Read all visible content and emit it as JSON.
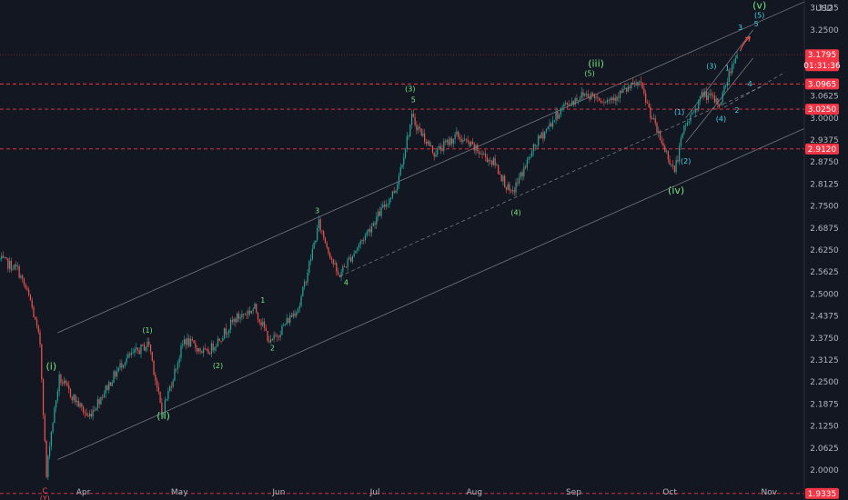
{
  "currency_label": "USD",
  "colors": {
    "background": "#131722",
    "up": "#26a69a",
    "down": "#ef5350",
    "channel": "#9598a1",
    "level_line": "#f23645",
    "wave_green": "#7ae582",
    "wave_cyan": "#4dd0e1",
    "wave_red": "#ef5350"
  },
  "chart_data": {
    "type": "candlestick",
    "x_axis": {
      "ticks": [
        "Apr",
        "May",
        "Jun",
        "Jul",
        "Aug",
        "Sep",
        "Oct",
        "Nov"
      ],
      "tick_dates": [
        "2024-04-01",
        "2024-05-01",
        "2024-06-01",
        "2024-07-01",
        "2024-08-01",
        "2024-09-01",
        "2024-10-01",
        "2024-11-01"
      ],
      "range": [
        "2024-03-06",
        "2024-11-12"
      ]
    },
    "y_axis": {
      "ticks": [
        "2.0000",
        "2.0625",
        "2.1250",
        "2.1875",
        "2.2500",
        "2.3125",
        "2.3750",
        "2.4375",
        "2.5000",
        "2.5625",
        "2.6250",
        "2.6875",
        "2.7500",
        "2.8125",
        "2.8750",
        "2.9375",
        "3.0000",
        "3.0625",
        "3.2500",
        "3.3125"
      ],
      "range": [
        1.915,
        3.335
      ]
    },
    "price_path": [
      {
        "date": "2024-03-06",
        "price": 2.6
      },
      {
        "date": "2024-03-12",
        "price": 2.57
      },
      {
        "date": "2024-03-16",
        "price": 2.48
      },
      {
        "date": "2024-03-19",
        "price": 2.36
      },
      {
        "date": "2024-03-21",
        "price": 1.98
      },
      {
        "date": "2024-03-22",
        "price": 2.08
      },
      {
        "date": "2024-03-25",
        "price": 2.26
      },
      {
        "date": "2024-04-03",
        "price": 2.15
      },
      {
        "date": "2024-04-14",
        "price": 2.31
      },
      {
        "date": "2024-04-22",
        "price": 2.36
      },
      {
        "date": "2024-04-26",
        "price": 2.16
      },
      {
        "date": "2024-05-03",
        "price": 2.37
      },
      {
        "date": "2024-05-10",
        "price": 2.33
      },
      {
        "date": "2024-05-19",
        "price": 2.43
      },
      {
        "date": "2024-05-25",
        "price": 2.46
      },
      {
        "date": "2024-05-30",
        "price": 2.36
      },
      {
        "date": "2024-06-08",
        "price": 2.47
      },
      {
        "date": "2024-06-14",
        "price": 2.7
      },
      {
        "date": "2024-06-20",
        "price": 2.55
      },
      {
        "date": "2024-06-28",
        "price": 2.66
      },
      {
        "date": "2024-07-08",
        "price": 2.8
      },
      {
        "date": "2024-07-13",
        "price": 3.0
      },
      {
        "date": "2024-07-20",
        "price": 2.9
      },
      {
        "date": "2024-07-27",
        "price": 2.95
      },
      {
        "date": "2024-08-08",
        "price": 2.87
      },
      {
        "date": "2024-08-13",
        "price": 2.78
      },
      {
        "date": "2024-08-21",
        "price": 2.93
      },
      {
        "date": "2024-08-29",
        "price": 3.03
      },
      {
        "date": "2024-09-05",
        "price": 3.07
      },
      {
        "date": "2024-09-12",
        "price": 3.05
      },
      {
        "date": "2024-09-22",
        "price": 3.1
      },
      {
        "date": "2024-09-28",
        "price": 2.95
      },
      {
        "date": "2024-10-03",
        "price": 2.85
      },
      {
        "date": "2024-10-06",
        "price": 2.97
      },
      {
        "date": "2024-10-12",
        "price": 3.07
      },
      {
        "date": "2024-10-17",
        "price": 3.04
      },
      {
        "date": "2024-10-22",
        "price": 3.18
      }
    ],
    "price_levels": [
      {
        "price": 3.0965,
        "label": "3.0965",
        "style": "dashed"
      },
      {
        "price": 3.025,
        "label": "3.0250",
        "style": "dashed"
      },
      {
        "price": 2.912,
        "label": "2.9120",
        "style": "dashed"
      },
      {
        "price": 1.9335,
        "label": "1.9335",
        "style": "dashed"
      }
    ],
    "last_price": {
      "label": "3.1795",
      "price": 3.1795,
      "countdown": "01:31:36"
    },
    "channels": [
      {
        "name": "upper",
        "from": {
          "date": "2024-03-24",
          "price": 2.39
        },
        "to": {
          "date": "2024-11-12",
          "price": 3.33
        }
      },
      {
        "name": "lower",
        "from": {
          "date": "2024-03-24",
          "price": 2.03
        },
        "to": {
          "date": "2024-11-12",
          "price": 2.97
        }
      },
      {
        "name": "mid",
        "from": {
          "date": "2024-06-20",
          "price": 2.55
        },
        "to": {
          "date": "2024-10-30",
          "price": 3.09
        },
        "style": "dashed"
      },
      {
        "name": "upper-small",
        "from": {
          "date": "2024-10-06",
          "price": 3.0
        },
        "to": {
          "date": "2024-10-27",
          "price": 3.25
        }
      },
      {
        "name": "lower-small",
        "from": {
          "date": "2024-10-06",
          "price": 2.93
        },
        "to": {
          "date": "2024-10-27",
          "price": 3.17
        }
      },
      {
        "name": "wedge-mid",
        "from": {
          "date": "2024-10-18",
          "price": 3.03
        },
        "to": {
          "date": "2024-11-06",
          "price": 3.13
        },
        "style": "dashed"
      }
    ],
    "wave_labels": [
      {
        "text": "C",
        "date": "2024-03-20",
        "price": 1.935,
        "color": "red"
      },
      {
        "text": "(Y)",
        "date": "2024-03-20",
        "price": 1.913,
        "color": "red"
      },
      {
        "text": "(i)",
        "date": "2024-03-22",
        "price": 2.285,
        "color": "green"
      },
      {
        "text": "(ii)",
        "date": "2024-04-26",
        "price": 2.145,
        "color": "green"
      },
      {
        "text": "(1)",
        "date": "2024-04-21",
        "price": 2.39,
        "color": "green"
      },
      {
        "text": "(2)",
        "date": "2024-05-13",
        "price": 2.29,
        "color": "green"
      },
      {
        "text": "1",
        "date": "2024-05-27",
        "price": 2.475,
        "color": "green"
      },
      {
        "text": "2",
        "date": "2024-05-30",
        "price": 2.34,
        "color": "green"
      },
      {
        "text": "3",
        "date": "2024-06-13",
        "price": 2.73,
        "color": "green"
      },
      {
        "text": "4",
        "date": "2024-06-22",
        "price": 2.525,
        "color": "green"
      },
      {
        "text": "(3)",
        "date": "2024-07-12",
        "price": 3.075,
        "color": "green"
      },
      {
        "text": "5",
        "date": "2024-07-13",
        "price": 3.045,
        "color": "green"
      },
      {
        "text": "(4)",
        "date": "2024-08-14",
        "price": 2.725,
        "color": "green"
      },
      {
        "text": "(5)",
        "date": "2024-09-06",
        "price": 3.12,
        "color": "green"
      },
      {
        "text": "(iii)",
        "date": "2024-09-08",
        "price": 3.145,
        "color": "green"
      },
      {
        "text": "(iv)",
        "date": "2024-10-03",
        "price": 2.785,
        "color": "green"
      },
      {
        "text": "(1)",
        "date": "2024-10-04",
        "price": 3.01,
        "color": "cyan"
      },
      {
        "text": "(2)",
        "date": "2024-10-06",
        "price": 2.87,
        "color": "cyan"
      },
      {
        "text": "(3)",
        "date": "2024-10-14",
        "price": 3.14,
        "color": "cyan"
      },
      {
        "text": "(4)",
        "date": "2024-10-17",
        "price": 2.99,
        "color": "cyan"
      },
      {
        "text": "1",
        "date": "2024-10-19",
        "price": 3.135,
        "color": "cyan"
      },
      {
        "text": "2",
        "date": "2024-10-22",
        "price": 3.015,
        "color": "cyan"
      },
      {
        "text": "3",
        "date": "2024-10-23",
        "price": 3.25,
        "color": "cyan"
      },
      {
        "text": "4",
        "date": "2024-10-26",
        "price": 3.09,
        "color": "cyan"
      },
      {
        "text": "5",
        "date": "2024-10-28",
        "price": 3.26,
        "color": "cyan"
      },
      {
        "text": "(5)",
        "date": "2024-10-29",
        "price": 3.285,
        "color": "cyan"
      },
      {
        "text": "(v)",
        "date": "2024-10-29",
        "price": 3.31,
        "color": "green"
      }
    ],
    "projection_arrow": {
      "from": {
        "date": "2024-10-23",
        "price": 3.19
      },
      "to": {
        "date": "2024-10-26",
        "price": 3.23
      },
      "color": "red"
    },
    "grid": false
  }
}
